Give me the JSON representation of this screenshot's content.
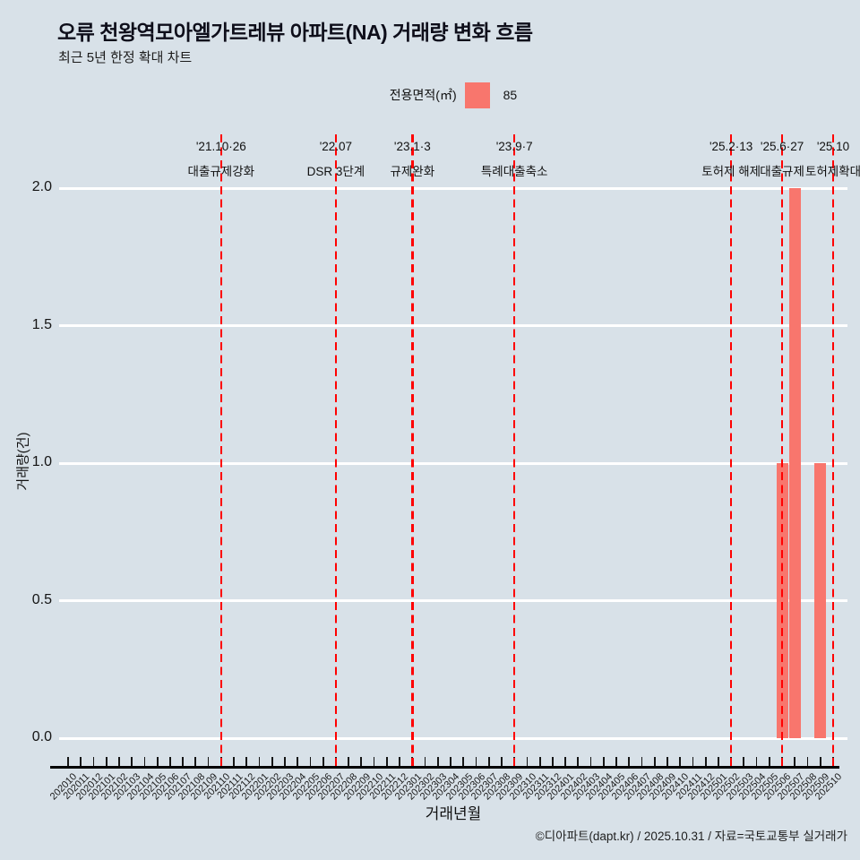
{
  "title": "오류 천왕역모아엘가트레뷰 아파트(NA) 거래량 변화 흐름",
  "subtitle": "최근 5년 한정 확대 차트",
  "legend": {
    "label": "전용면적(㎡)",
    "value": "85",
    "swatch_color": "#f8766d"
  },
  "axes": {
    "y_label": "거래량(건)",
    "x_label": "거래년월"
  },
  "footer": "©디아파트(dapt.kr) / 2025.10.31 / 자료=국토교통부 실거래가",
  "colors": {
    "bar": "#f8766d",
    "event_line": "#ff0000",
    "background": "#d8e1e8",
    "gridline": "#ffffff"
  },
  "chart_data": {
    "type": "bar",
    "title": "오류 천왕역모아엘가트레뷰 아파트(NA) 거래량 변화 흐름",
    "subtitle": "최근 5년 한정 확대 차트",
    "xlabel": "거래년월",
    "ylabel": "거래량(건)",
    "ylim": [
      0,
      2.0
    ],
    "yticks": [
      0.0,
      0.5,
      1.0,
      1.5,
      2.0
    ],
    "grid": true,
    "legend_position": "top",
    "legend_title": "전용면적(㎡)",
    "categories": [
      "202010",
      "202011",
      "202012",
      "202101",
      "202102",
      "202103",
      "202104",
      "202105",
      "202106",
      "202107",
      "202108",
      "202109",
      "202110",
      "202111",
      "202112",
      "202201",
      "202202",
      "202203",
      "202204",
      "202205",
      "202206",
      "202207",
      "202208",
      "202209",
      "202210",
      "202211",
      "202212",
      "202301",
      "202302",
      "202303",
      "202304",
      "202305",
      "202306",
      "202307",
      "202308",
      "202309",
      "202310",
      "202311",
      "202312",
      "202401",
      "202402",
      "202403",
      "202404",
      "202405",
      "202406",
      "202407",
      "202408",
      "202409",
      "202410",
      "202411",
      "202412",
      "202501",
      "202502",
      "202503",
      "202504",
      "202505",
      "202506",
      "202507",
      "202508",
      "202509",
      "202510"
    ],
    "series": [
      {
        "name": "85",
        "values": [
          0,
          0,
          0,
          0,
          0,
          0,
          0,
          0,
          0,
          0,
          0,
          0,
          0,
          0,
          0,
          0,
          0,
          0,
          0,
          0,
          0,
          0,
          0,
          0,
          0,
          0,
          0,
          0,
          0,
          0,
          0,
          0,
          0,
          0,
          0,
          0,
          0,
          0,
          0,
          0,
          0,
          0,
          0,
          0,
          0,
          0,
          0,
          0,
          0,
          0,
          0,
          0,
          0,
          0,
          0,
          0,
          1,
          2,
          0,
          1,
          0
        ]
      }
    ],
    "annotations": [
      {
        "date": "'21.10·26",
        "label": "대출규제강화",
        "month": "202110"
      },
      {
        "date": "'22.07",
        "label": "DSR 3단계",
        "month": "202207"
      },
      {
        "date": "'23.1·3",
        "label": "규제완화",
        "month": "202301"
      },
      {
        "date": "'23.9·7",
        "label": "특례대출축소",
        "month": "202309"
      },
      {
        "date": "'25.2·13",
        "label": "토허제 해제",
        "month": "202502"
      },
      {
        "date": "'25.6·27",
        "label": "대출규제",
        "month": "202506"
      },
      {
        "date": "'25.10",
        "label": "토허제확대",
        "month": "202510"
      }
    ]
  }
}
